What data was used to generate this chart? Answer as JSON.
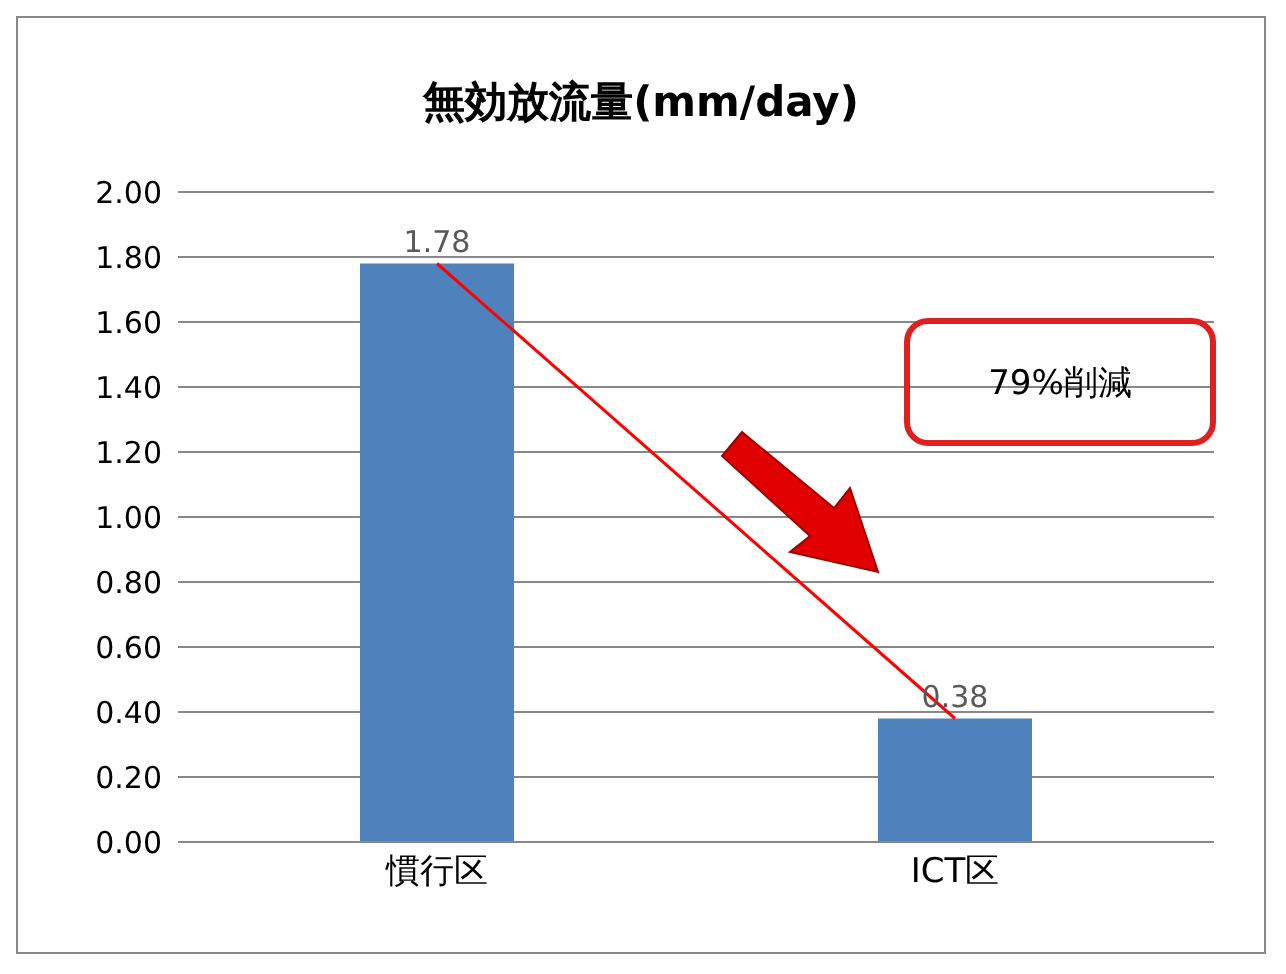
{
  "chart_data": {
    "type": "bar",
    "title": "無効放流量(mm/day)",
    "categories": [
      "慣行区",
      "ICT区"
    ],
    "series": [
      {
        "color": "#4f81bd",
        "values": [
          1.78,
          0.38
        ],
        "value_labels": [
          "1.78",
          "0.38"
        ]
      },
      {
        "type": "line",
        "color": "#ff0000",
        "values": [
          1.78,
          0.38
        ]
      }
    ],
    "ylim": [
      0,
      2
    ],
    "yticks": [
      {
        "value": 0,
        "label": "0.00"
      },
      {
        "value": 0.2,
        "label": "0.20"
      },
      {
        "value": 0.4,
        "label": "0.40"
      },
      {
        "value": 0.6,
        "label": "0.60"
      },
      {
        "value": 0.8,
        "label": "0.80"
      },
      {
        "value": 1,
        "label": "1.00"
      },
      {
        "value": 1.2,
        "label": "1.20"
      },
      {
        "value": 1.4,
        "label": "1.40"
      },
      {
        "value": 1.6,
        "label": "1.60"
      },
      {
        "value": 1.8,
        "label": "1.80"
      },
      {
        "value": 2,
        "label": "2.00"
      }
    ],
    "grid": "y",
    "annotations": [
      "79%削減"
    ]
  }
}
